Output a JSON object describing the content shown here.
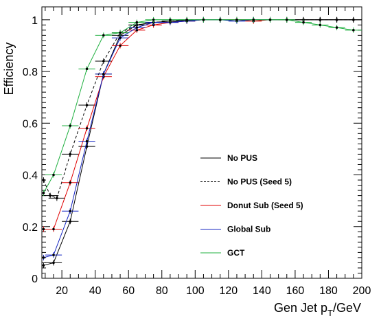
{
  "chart_data": {
    "type": "line",
    "title": "",
    "xlabel": "Gen Jet p",
    "xlabel_sub": "T",
    "xlabel_unit": "/GeV",
    "ylabel": "Efficiency",
    "xlim": [
      8,
      200
    ],
    "ylim": [
      0,
      1.05
    ],
    "x_ticks": [
      "20",
      "40",
      "60",
      "80",
      "100",
      "120",
      "140",
      "160",
      "180",
      "200"
    ],
    "y_ticks": [
      "0",
      "0.2",
      "0.4",
      "0.6",
      "0.8",
      "1"
    ],
    "grid": false,
    "legend_position": "center-right",
    "series": [
      {
        "name": "No PUS",
        "color": "#000000",
        "dash": "solid",
        "x": [
          9,
          15,
          25,
          35,
          45,
          55,
          65,
          75,
          85,
          95,
          105,
          115,
          125,
          135,
          145,
          155,
          165,
          175,
          185,
          195
        ],
        "y": [
          0.05,
          0.06,
          0.22,
          0.51,
          0.79,
          0.94,
          0.98,
          0.99,
          0.995,
          0.997,
          1.0,
          1.0,
          1.0,
          1.0,
          1.0,
          1.0,
          1.0,
          1.0,
          1.0,
          1.0
        ]
      },
      {
        "name": "No PUS (Seed 5)",
        "color": "#000000",
        "dash": "dashed",
        "x": [
          9,
          13,
          17,
          25,
          35,
          45,
          55,
          65,
          75,
          85,
          95,
          105,
          115,
          125,
          135,
          145,
          155,
          165,
          175,
          185,
          195
        ],
        "y": [
          0.38,
          0.32,
          0.31,
          0.48,
          0.67,
          0.84,
          0.95,
          0.98,
          0.99,
          0.995,
          1.0,
          1.0,
          1.0,
          1.0,
          1.0,
          1.0,
          1.0,
          1.0,
          1.0,
          1.0,
          1.0
        ]
      },
      {
        "name": "Donut Sub (Seed 5)",
        "color": "#e00000",
        "dash": "solid",
        "x": [
          9,
          15,
          25,
          35,
          45,
          55,
          65,
          75,
          85,
          95,
          105,
          115,
          125,
          135,
          145
        ],
        "y": [
          0.19,
          0.19,
          0.37,
          0.58,
          0.78,
          0.9,
          0.96,
          0.98,
          0.99,
          0.995,
          1.0,
          1.0,
          1.0,
          0.995,
          1.0
        ]
      },
      {
        "name": "Global Sub",
        "color": "#1020c0",
        "dash": "solid",
        "x": [
          9,
          15,
          25,
          35,
          45,
          55,
          65,
          75,
          85,
          95,
          105,
          115,
          125,
          135,
          145
        ],
        "y": [
          0.08,
          0.09,
          0.26,
          0.53,
          0.79,
          0.93,
          0.97,
          0.99,
          0.99,
          0.995,
          1.0,
          1.0,
          0.995,
          1.0,
          1.0
        ]
      },
      {
        "name": "GCT",
        "color": "#20b040",
        "dash": "solid",
        "x": [
          9,
          15,
          25,
          35,
          45,
          55,
          65,
          75,
          85,
          95,
          105,
          115,
          125,
          135,
          145,
          155,
          165,
          175,
          185,
          195
        ],
        "y": [
          0.33,
          0.4,
          0.59,
          0.81,
          0.94,
          0.95,
          0.99,
          1.0,
          1.0,
          1.0,
          1.0,
          1.0,
          1.0,
          1.0,
          1.0,
          1.0,
          0.99,
          0.98,
          0.97,
          0.96
        ]
      }
    ]
  }
}
